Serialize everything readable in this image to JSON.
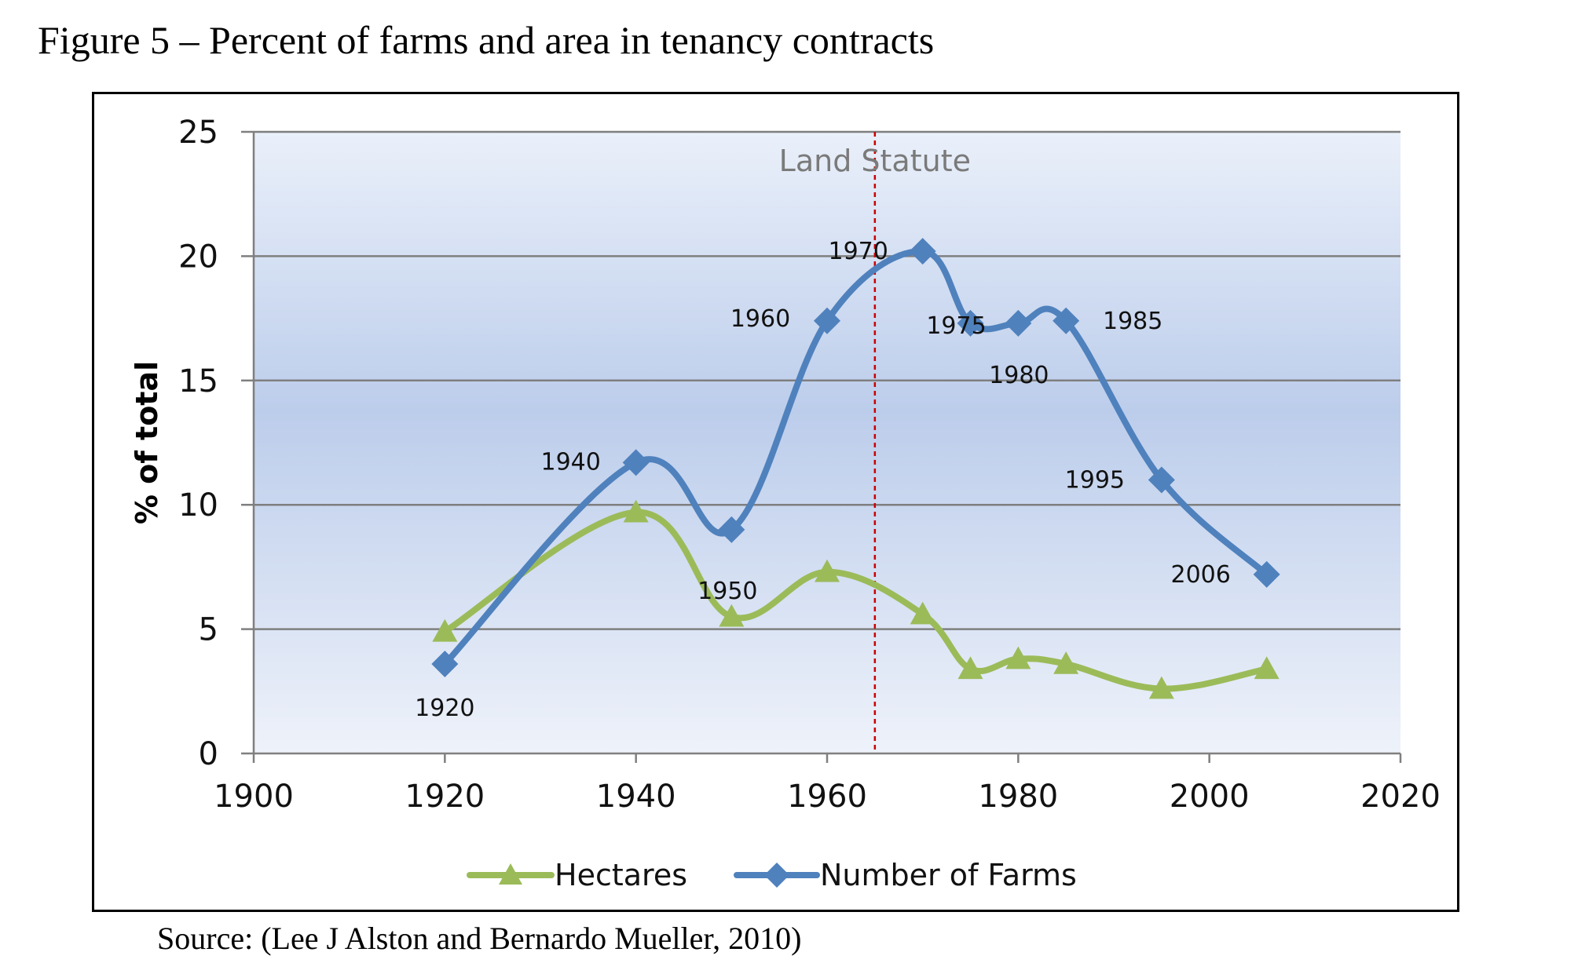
{
  "figure_title": "Figure 5 – Percent of farms and area in tenancy contracts",
  "source": "Source: (Lee J Alston and Bernardo Mueller, 2010)",
  "chart_data": {
    "type": "line",
    "title": "",
    "xlabel": "",
    "ylabel": "% of total",
    "xlim": [
      1900,
      2020
    ],
    "ylim": [
      0,
      25
    ],
    "xticks": [
      1900,
      1920,
      1940,
      1960,
      1980,
      2000,
      2020
    ],
    "yticks": [
      0,
      5,
      10,
      15,
      20,
      25
    ],
    "grid": "horizontal",
    "legend_position": "bottom",
    "series": [
      {
        "name": "Hectares",
        "color": "#9bbb59",
        "marker": "triangle",
        "x": [
          1920,
          1940,
          1950,
          1960,
          1970,
          1975,
          1980,
          1985,
          1995,
          2006
        ],
        "y": [
          4.9,
          9.7,
          5.5,
          7.3,
          5.6,
          3.4,
          3.8,
          3.6,
          2.6,
          3.4
        ]
      },
      {
        "name": "Number of Farms",
        "color": "#4f81bd",
        "marker": "diamond",
        "x": [
          1920,
          1940,
          1950,
          1960,
          1970,
          1975,
          1980,
          1985,
          1995,
          2006
        ],
        "y": [
          3.6,
          11.7,
          9.0,
          17.4,
          20.2,
          17.3,
          17.3,
          17.4,
          11.0,
          7.2
        ],
        "point_labels": [
          "1920",
          "1940",
          "1950",
          "1960",
          "1970",
          "1975",
          "1980",
          "1985",
          "1995",
          "2006"
        ]
      }
    ],
    "annotations": [
      {
        "type": "vline",
        "x": 1965,
        "color": "#cc0000",
        "style": "dashed",
        "label": "Land Statute"
      }
    ]
  }
}
